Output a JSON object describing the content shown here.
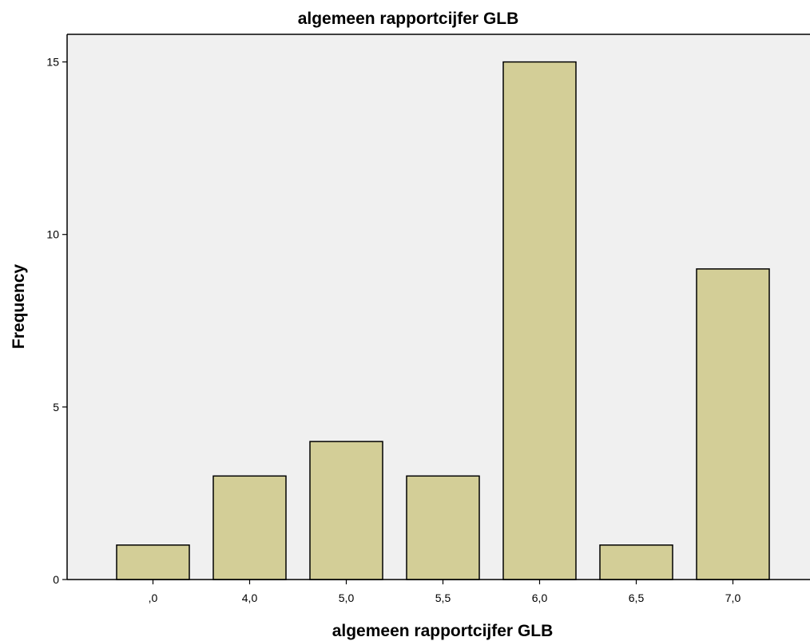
{
  "chart_data": {
    "type": "bar",
    "title": "algemeen rapportcijfer GLB",
    "xlabel": "algemeen rapportcijfer GLB",
    "ylabel": "Frequency",
    "categories": [
      ",0",
      "4,0",
      "5,0",
      "5,5",
      "6,0",
      "6,5",
      "7,0"
    ],
    "values": [
      1,
      3,
      4,
      3,
      15,
      1,
      9
    ],
    "ylim": [
      0,
      15.8
    ],
    "yticks": [
      0,
      5,
      10,
      15
    ],
    "ytick_labels": [
      "0",
      "5",
      "10",
      "15"
    ],
    "grid": false,
    "colors": {
      "bar_fill": "#d3ce97",
      "bar_stroke": "#000000",
      "plot_background": "#f0f0f0",
      "axis": "#000000"
    }
  }
}
